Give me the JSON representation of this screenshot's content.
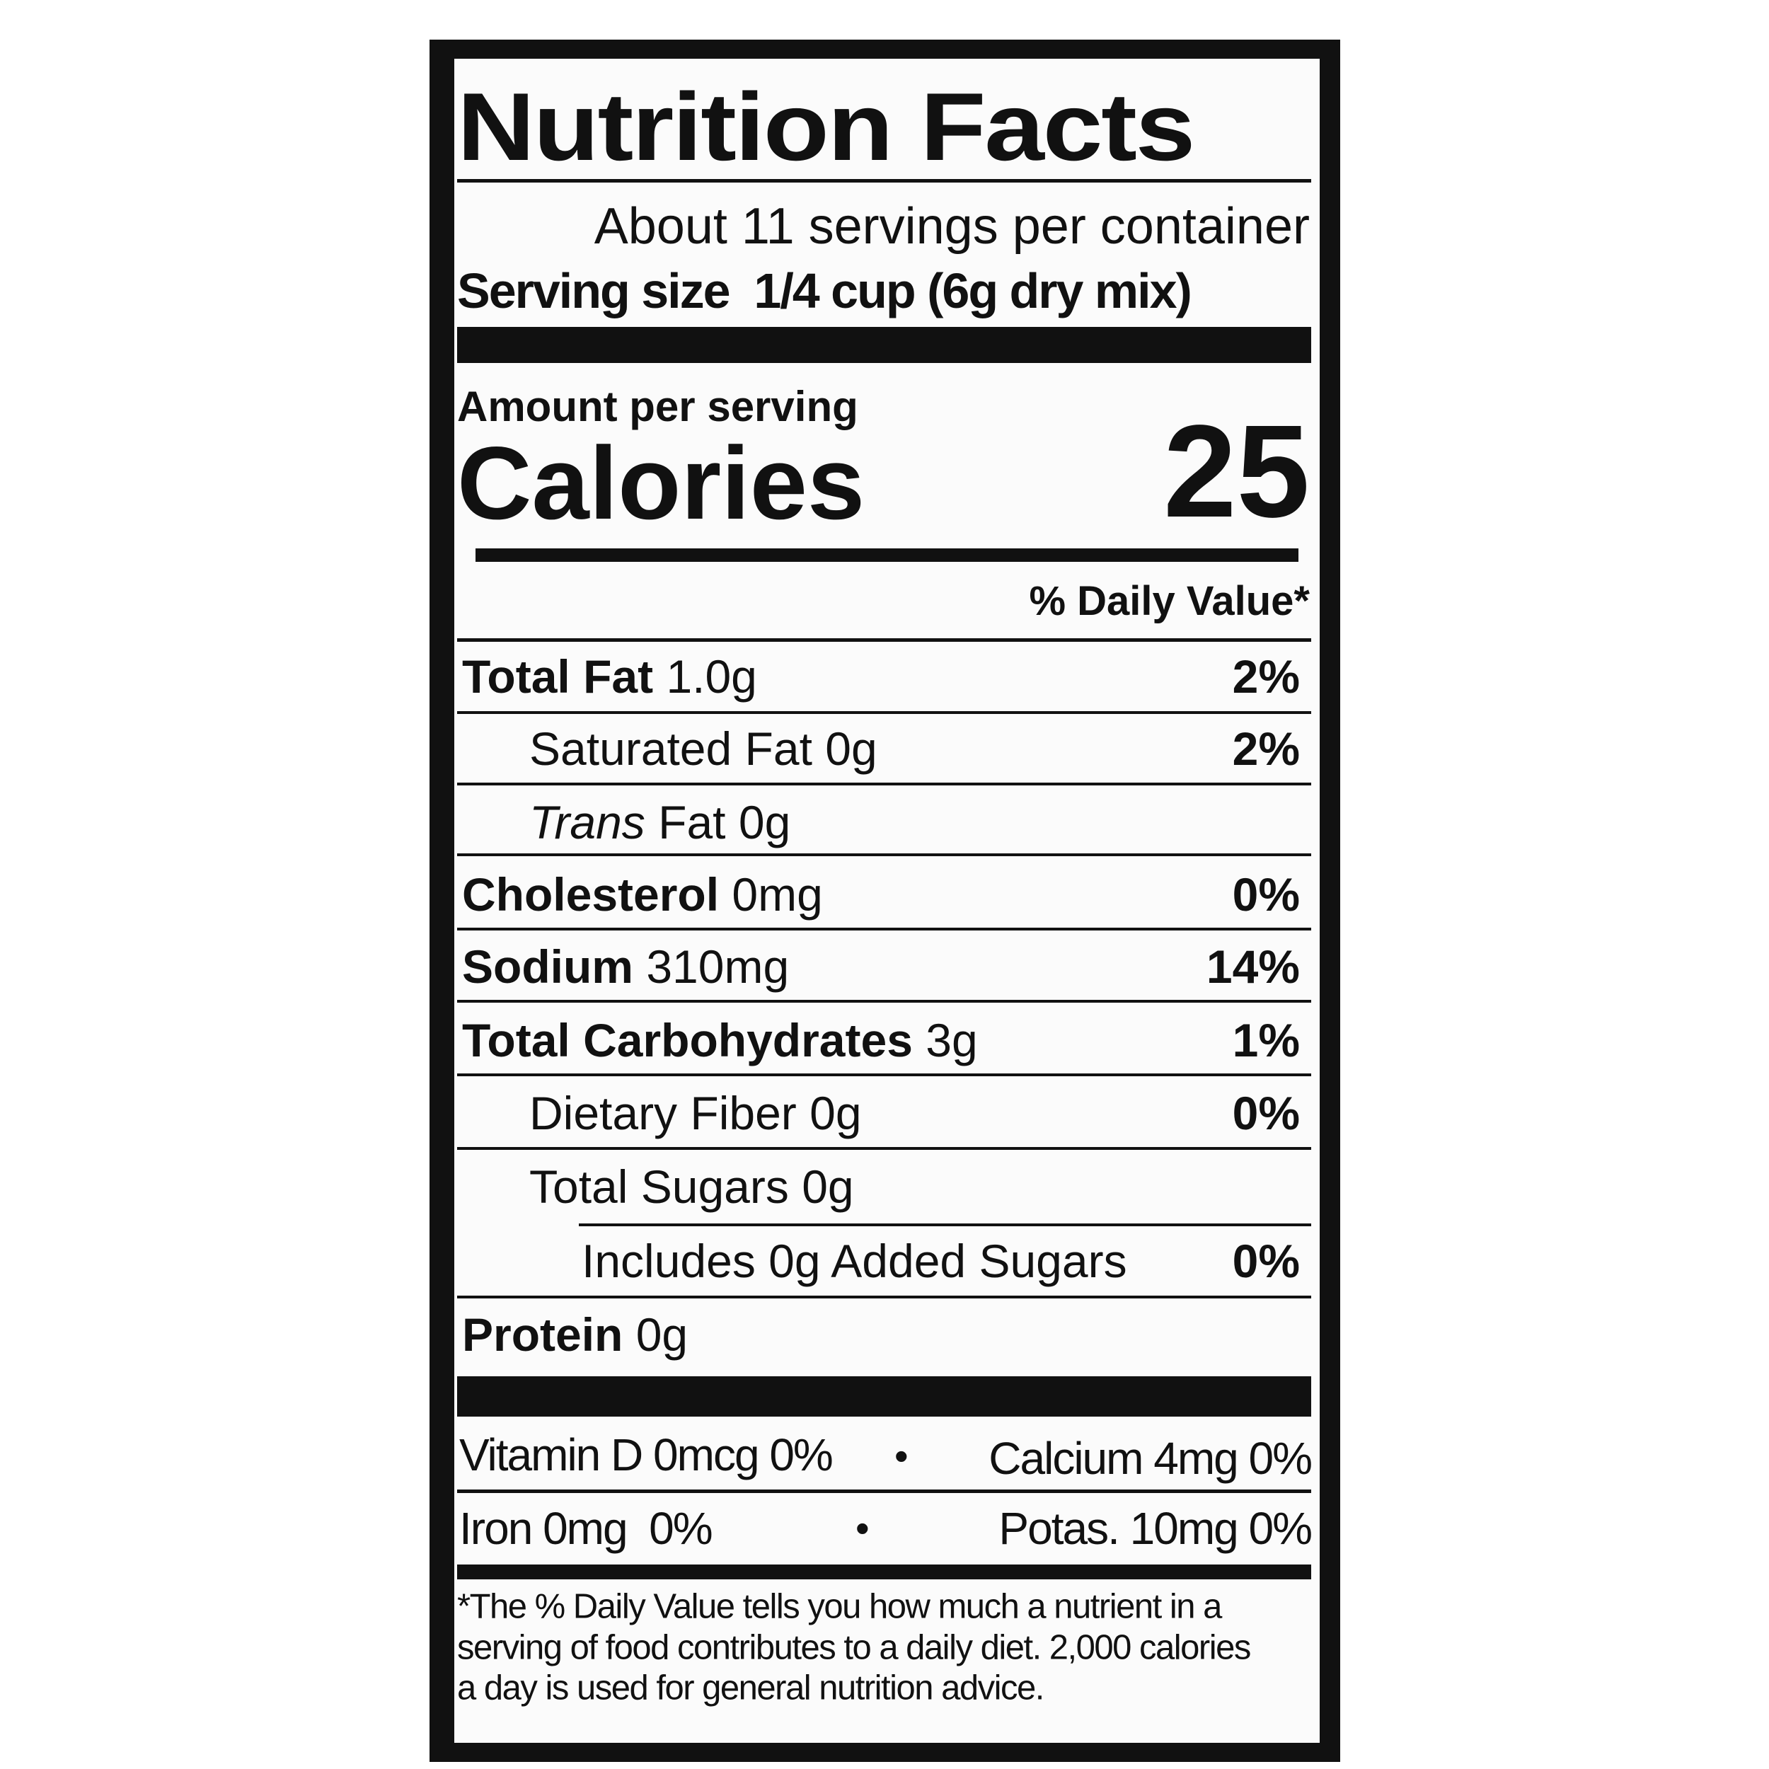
{
  "title": "Nutrition Facts",
  "servings_per_container": "About 11 servings per container",
  "serving_size_label": "Serving size",
  "serving_size_value": "1/4 cup (6g dry mix)",
  "amount_per_serving": "Amount per serving",
  "calories_label": "Calories",
  "calories_value": "25",
  "daily_value_header": "% Daily Value*",
  "nutrients": [
    {
      "label": "Total Fat",
      "amount": "1.0g",
      "dv": "2%"
    },
    {
      "label": "Saturated Fat",
      "amount": "0g",
      "dv": "2%"
    },
    {
      "label_italic": "Trans",
      "label": "Fat",
      "amount": "0g",
      "dv": ""
    },
    {
      "label": "Cholesterol",
      "amount": "0mg",
      "dv": "0%"
    },
    {
      "label": "Sodium",
      "amount": "310mg",
      "dv": "14%"
    },
    {
      "label": "Total Carbohydrates",
      "amount": "3g",
      "dv": "1%"
    },
    {
      "label": "Dietary Fiber",
      "amount": "0g",
      "dv": "0%"
    },
    {
      "label": "Total Sugars",
      "amount": "0g",
      "dv": ""
    },
    {
      "label": "Includes 0g Added Sugars",
      "amount": "",
      "dv": "0%"
    },
    {
      "label": "Protein",
      "amount": "0g",
      "dv": ""
    }
  ],
  "micronutrients": {
    "row1_left": "Vitamin D 0mcg 0%",
    "row1_right": "Calcium 4mg 0%",
    "row2_left": "Iron 0mg  0%",
    "row2_right": "Potas. 10mg 0%",
    "separator": "•"
  },
  "footnote": [
    "*The % Daily Value tells you how much a nutrient in a",
    "serving of food contributes to a daily diet. 2,000 calories",
    "a day is used for general nutrition advice."
  ]
}
